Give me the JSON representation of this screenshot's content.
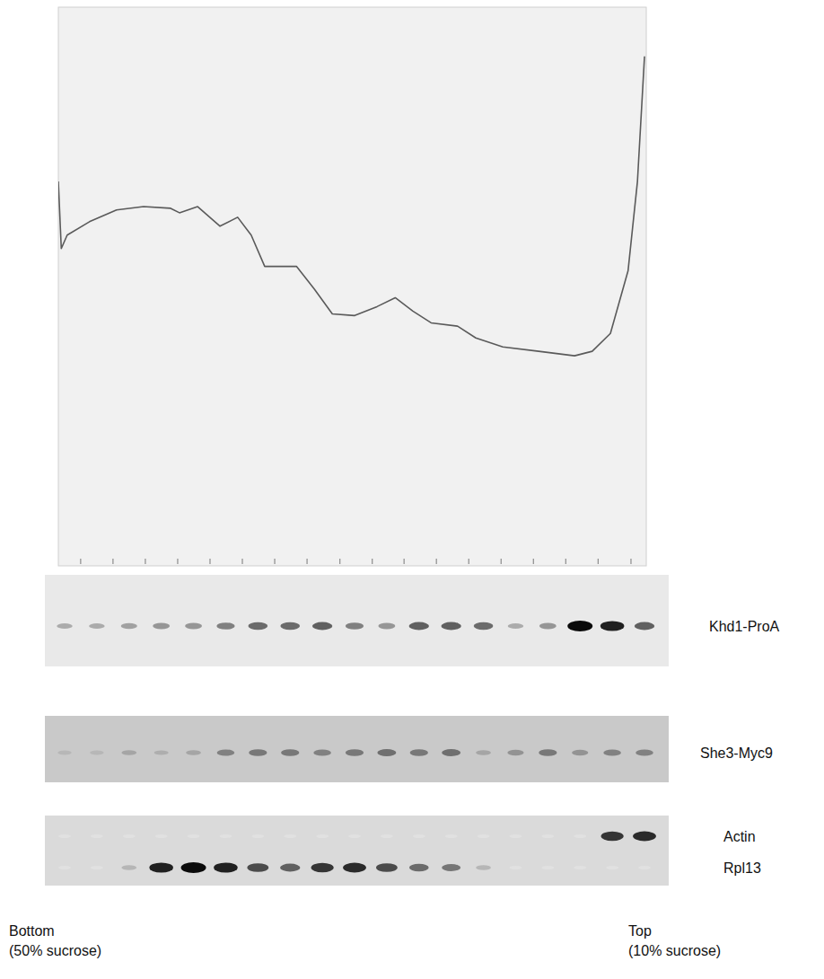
{
  "chart_data": {
    "type": "line",
    "x": [
      0,
      0.5,
      1.5,
      5.3,
      9.9,
      14.5,
      19.1,
      20.6,
      23.7,
      27.5,
      30.5,
      32.8,
      35.1,
      40.5,
      43.5,
      46.6,
      50.4,
      54.2,
      57.3,
      60.3,
      63.4,
      67.9,
      71.0,
      75.6,
      81.7,
      87.8,
      90.8,
      93.9,
      96.9,
      98.5,
      99.7
    ],
    "values": [
      68.8,
      56.8,
      59.2,
      61.6,
      63.7,
      64.3,
      64.0,
      63.2,
      64.3,
      60.8,
      62.4,
      59.2,
      53.6,
      53.6,
      49.6,
      45.1,
      44.8,
      46.4,
      48.0,
      45.6,
      43.5,
      42.9,
      40.8,
      39.2,
      38.4,
      37.6,
      38.4,
      41.6,
      52.8,
      68.8,
      91.2
    ],
    "xlim": [
      0,
      100
    ],
    "ylim": [
      0,
      100
    ],
    "xticks": [
      3.8,
      9.3,
      14.8,
      20.3,
      25.8,
      31.3,
      36.8,
      42.3,
      47.9,
      53.4,
      58.8,
      64.3,
      69.8,
      75.3,
      80.8,
      86.3,
      91.8,
      97.4
    ],
    "tick_labels": false,
    "color": "#5a5a5a"
  },
  "blots": [
    {
      "rows": [
        {
          "label": "Khd1-ProA",
          "bands": [
            0.25,
            0.25,
            0.3,
            0.35,
            0.35,
            0.45,
            0.55,
            0.55,
            0.6,
            0.45,
            0.35,
            0.6,
            0.6,
            0.55,
            0.25,
            0.35,
            1.0,
            0.9,
            0.6
          ]
        }
      ]
    },
    {
      "rows": [
        {
          "label": "She3-Myc9",
          "bands": [
            0.1,
            0.1,
            0.2,
            0.15,
            0.2,
            0.4,
            0.45,
            0.45,
            0.4,
            0.45,
            0.5,
            0.45,
            0.5,
            0.2,
            0.3,
            0.45,
            0.3,
            0.4,
            0.4
          ]
        }
      ]
    },
    {
      "rows": [
        {
          "label": "Actin",
          "bands": [
            0,
            0,
            0,
            0,
            0,
            0,
            0,
            0,
            0,
            0,
            0,
            0,
            0,
            0,
            0,
            0,
            0,
            0.8,
            0.85
          ]
        },
        {
          "label": "Rpl13",
          "bands": [
            0,
            0,
            0.2,
            0.9,
            1.0,
            0.9,
            0.7,
            0.6,
            0.8,
            0.85,
            0.7,
            0.55,
            0.5,
            0.2,
            0,
            0,
            0,
            0,
            0
          ]
        }
      ]
    }
  ],
  "gradient": {
    "bottom": [
      "Bottom",
      "(50% sucrose)"
    ],
    "top": [
      "Top",
      "(10% sucrose)"
    ]
  }
}
